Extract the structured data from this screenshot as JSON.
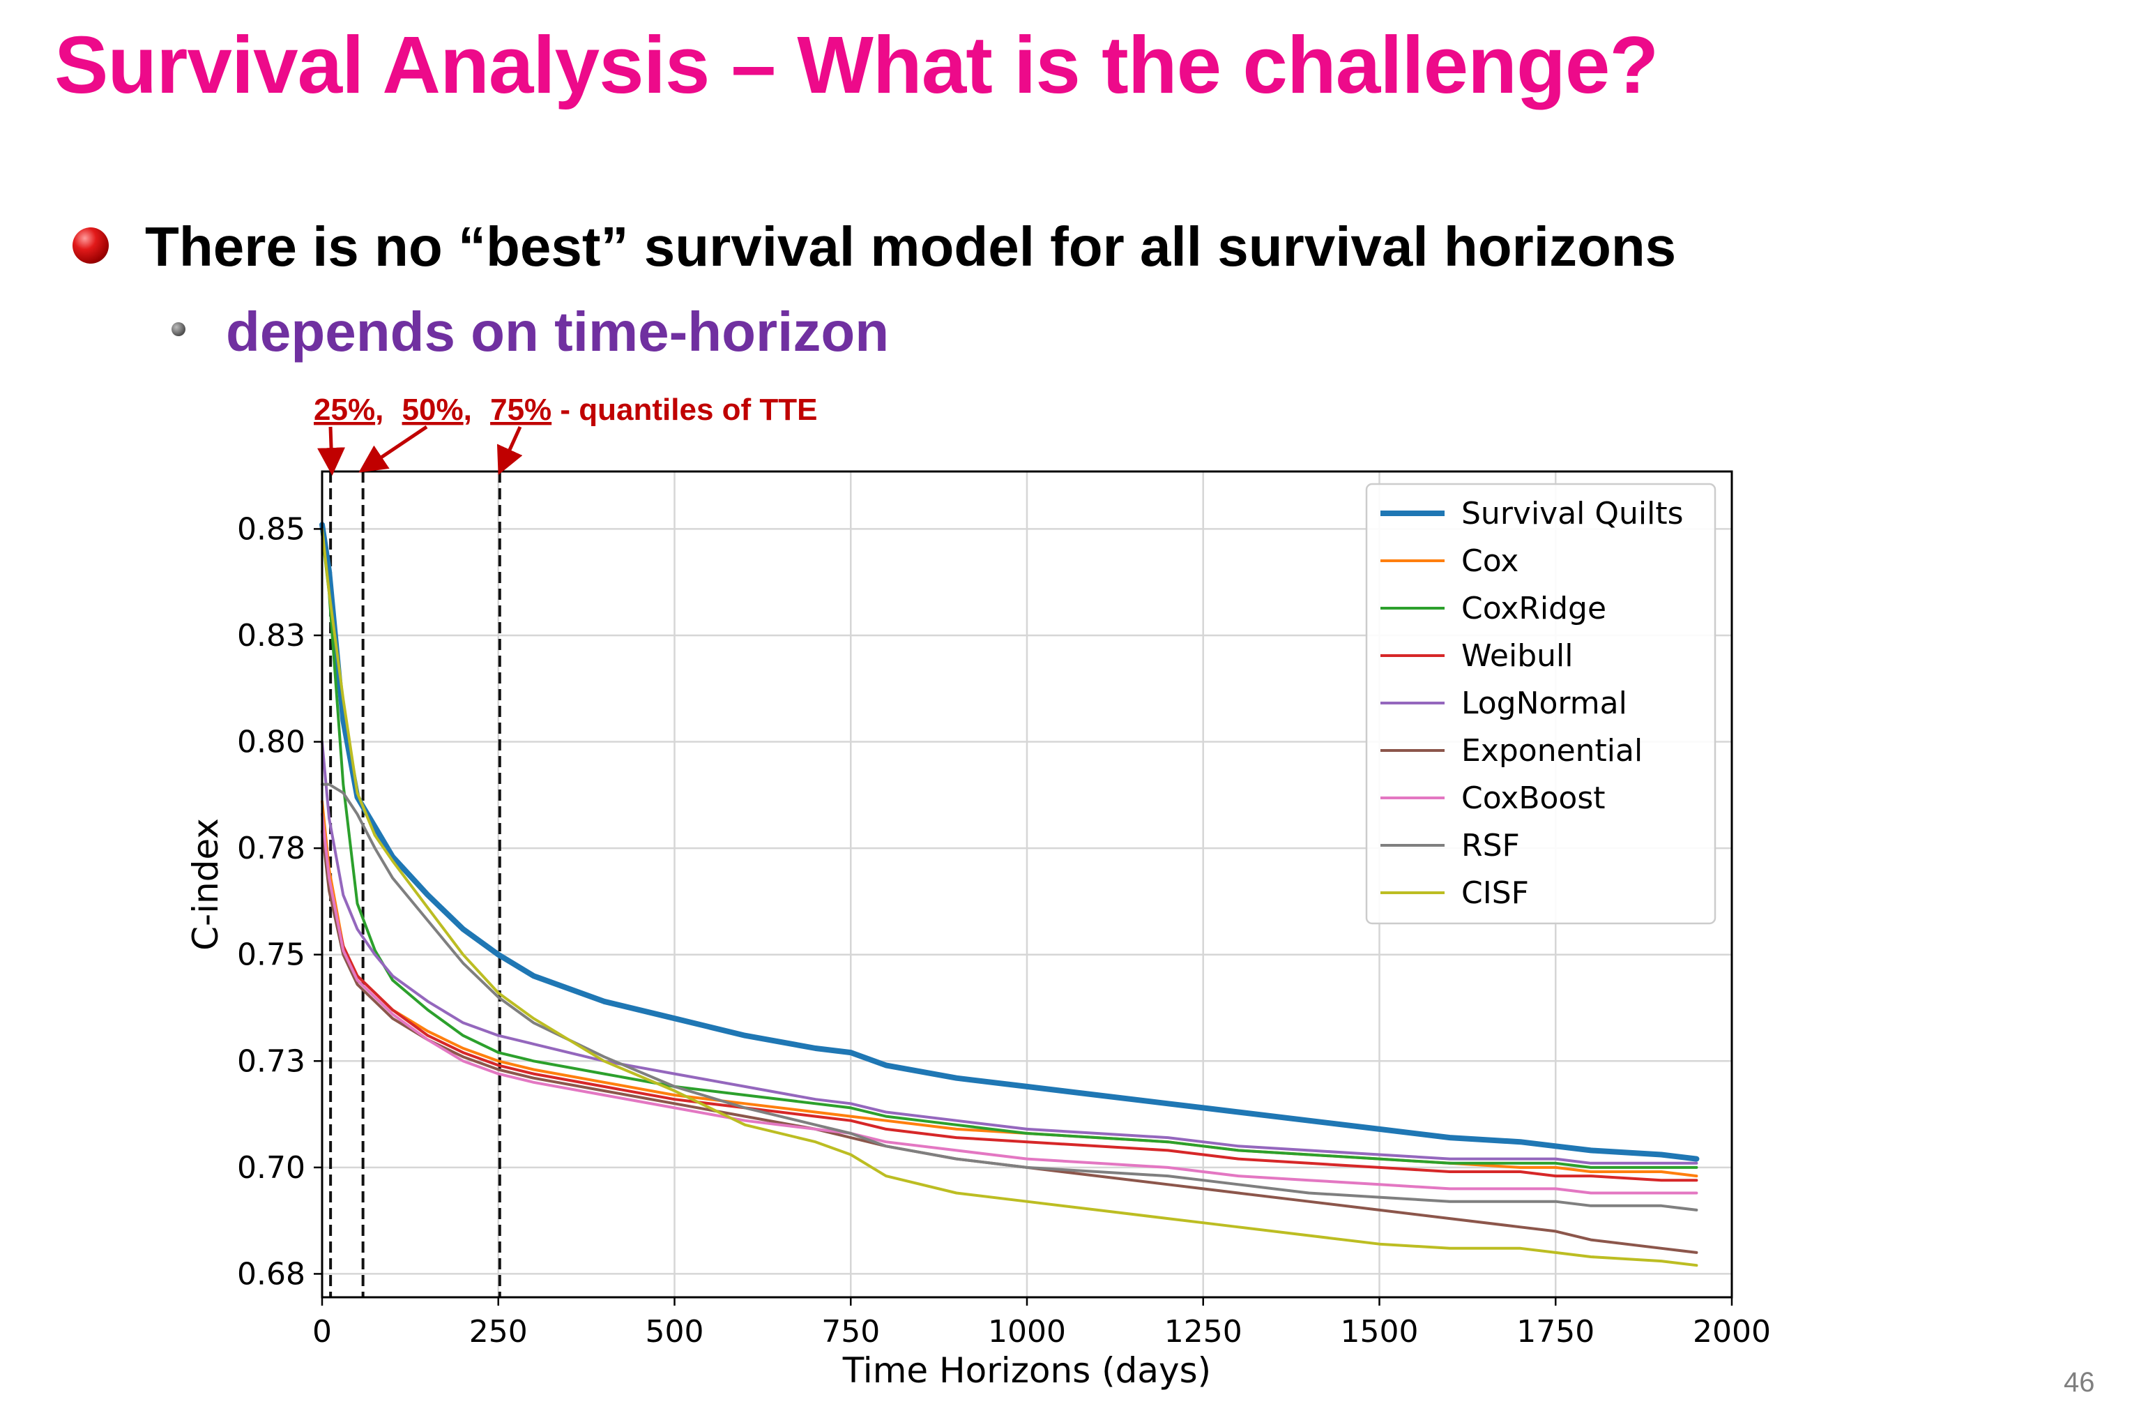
{
  "slide": {
    "title": "Survival Analysis – What is the challenge?",
    "bullets": [
      "There is no “best” survival model for all survival horizons",
      "depends on time-horizon"
    ],
    "page_number": "46",
    "annotation": {
      "labels": [
        "25%",
        "50%",
        "75%"
      ],
      "separators": [
        ",",
        ","
      ],
      "suffix": " - quantiles of TTE",
      "quantile_days": [
        12,
        58,
        252
      ],
      "color": "#c00000"
    }
  },
  "chart_data": {
    "type": "line",
    "title": "",
    "xlabel": "Time Horizons (days)",
    "ylabel": "C-index",
    "xlim": [
      0,
      2000
    ],
    "ylim": [
      0.6695,
      0.8635
    ],
    "xticks": [
      0,
      250,
      500,
      750,
      1000,
      1250,
      1500,
      1750,
      2000
    ],
    "xtick_labels": [
      "0",
      "250",
      "500",
      "750",
      "1000",
      "1250",
      "1500",
      "1750",
      "2000"
    ],
    "yticks": [
      0.675,
      0.7,
      0.725,
      0.75,
      0.775,
      0.8,
      0.825,
      0.85
    ],
    "ytick_labels": [
      "0.68",
      "0.70",
      "0.73",
      "0.75",
      "0.78",
      "0.80",
      "0.83",
      "0.85"
    ],
    "grid": true,
    "legend_position": "top-right",
    "vlines": [
      12,
      58,
      252
    ],
    "series": [
      {
        "name": "Survival Quilts",
        "color": "#1f77b4",
        "width": 8,
        "x": [
          0,
          10,
          30,
          50,
          75,
          100,
          150,
          200,
          250,
          300,
          400,
          500,
          600,
          700,
          750,
          800,
          900,
          1000,
          1100,
          1200,
          1250,
          1300,
          1400,
          1500,
          1600,
          1700,
          1750,
          1800,
          1900,
          1950
        ],
        "y": [
          0.851,
          0.84,
          0.805,
          0.787,
          0.78,
          0.773,
          0.764,
          0.756,
          0.75,
          0.745,
          0.739,
          0.735,
          0.731,
          0.728,
          0.727,
          0.724,
          0.721,
          0.719,
          0.717,
          0.715,
          0.714,
          0.713,
          0.711,
          0.709,
          0.707,
          0.706,
          0.705,
          0.704,
          0.703,
          0.702
        ]
      },
      {
        "name": "Cox",
        "color": "#ff7f0e",
        "width": 4,
        "x": [
          0,
          10,
          30,
          50,
          75,
          100,
          150,
          200,
          250,
          300,
          400,
          500,
          600,
          700,
          750,
          800,
          900,
          1000,
          1100,
          1200,
          1250,
          1300,
          1400,
          1500,
          1600,
          1700,
          1750,
          1800,
          1900,
          1950
        ],
        "y": [
          0.786,
          0.77,
          0.752,
          0.745,
          0.741,
          0.737,
          0.732,
          0.728,
          0.725,
          0.723,
          0.72,
          0.717,
          0.715,
          0.713,
          0.712,
          0.711,
          0.709,
          0.708,
          0.707,
          0.706,
          0.705,
          0.704,
          0.703,
          0.702,
          0.701,
          0.7,
          0.7,
          0.699,
          0.699,
          0.698
        ]
      },
      {
        "name": "CoxRidge",
        "color": "#2ca02c",
        "width": 4,
        "x": [
          0,
          10,
          30,
          50,
          75,
          100,
          150,
          200,
          250,
          300,
          400,
          500,
          600,
          700,
          750,
          800,
          900,
          1000,
          1100,
          1200,
          1250,
          1300,
          1400,
          1500,
          1600,
          1700,
          1750,
          1800,
          1900,
          1950
        ],
        "y": [
          0.849,
          0.835,
          0.79,
          0.762,
          0.751,
          0.744,
          0.737,
          0.731,
          0.727,
          0.725,
          0.722,
          0.719,
          0.717,
          0.715,
          0.714,
          0.712,
          0.71,
          0.708,
          0.707,
          0.706,
          0.705,
          0.704,
          0.703,
          0.702,
          0.701,
          0.701,
          0.701,
          0.7,
          0.7,
          0.7
        ]
      },
      {
        "name": "Weibull",
        "color": "#d62728",
        "width": 4,
        "x": [
          0,
          10,
          30,
          50,
          75,
          100,
          150,
          200,
          250,
          300,
          400,
          500,
          600,
          700,
          750,
          800,
          900,
          1000,
          1100,
          1200,
          1250,
          1300,
          1400,
          1500,
          1600,
          1700,
          1750,
          1800,
          1900,
          1950
        ],
        "y": [
          0.779,
          0.766,
          0.752,
          0.745,
          0.741,
          0.737,
          0.731,
          0.727,
          0.724,
          0.722,
          0.719,
          0.716,
          0.714,
          0.712,
          0.711,
          0.709,
          0.707,
          0.706,
          0.705,
          0.704,
          0.703,
          0.702,
          0.701,
          0.7,
          0.699,
          0.699,
          0.698,
          0.698,
          0.697,
          0.697
        ]
      },
      {
        "name": "LogNormal",
        "color": "#9467bd",
        "width": 4,
        "x": [
          0,
          10,
          30,
          50,
          75,
          100,
          150,
          200,
          250,
          300,
          400,
          500,
          600,
          700,
          750,
          800,
          900,
          1000,
          1100,
          1200,
          1250,
          1300,
          1400,
          1500,
          1600,
          1700,
          1750,
          1800,
          1900,
          1950
        ],
        "y": [
          0.8,
          0.782,
          0.764,
          0.756,
          0.75,
          0.745,
          0.739,
          0.734,
          0.731,
          0.729,
          0.725,
          0.722,
          0.719,
          0.716,
          0.715,
          0.713,
          0.711,
          0.709,
          0.708,
          0.707,
          0.706,
          0.705,
          0.704,
          0.703,
          0.702,
          0.702,
          0.702,
          0.701,
          0.701,
          0.701
        ]
      },
      {
        "name": "Exponential",
        "color": "#8c564b",
        "width": 4,
        "x": [
          0,
          10,
          30,
          50,
          75,
          100,
          150,
          200,
          250,
          300,
          400,
          500,
          600,
          700,
          750,
          800,
          900,
          1000,
          1100,
          1200,
          1250,
          1300,
          1400,
          1500,
          1600,
          1700,
          1750,
          1800,
          1900,
          1950
        ],
        "y": [
          0.779,
          0.765,
          0.75,
          0.743,
          0.739,
          0.735,
          0.73,
          0.726,
          0.723,
          0.721,
          0.718,
          0.715,
          0.712,
          0.709,
          0.707,
          0.705,
          0.702,
          0.7,
          0.698,
          0.696,
          0.695,
          0.694,
          0.692,
          0.69,
          0.688,
          0.686,
          0.685,
          0.683,
          0.681,
          0.68
        ]
      },
      {
        "name": "CoxBoost",
        "color": "#e377c2",
        "width": 4,
        "x": [
          0,
          10,
          30,
          50,
          75,
          100,
          150,
          200,
          250,
          300,
          400,
          500,
          600,
          700,
          750,
          800,
          900,
          1000,
          1100,
          1200,
          1250,
          1300,
          1400,
          1500,
          1600,
          1700,
          1750,
          1800,
          1900,
          1950
        ],
        "y": [
          0.783,
          0.768,
          0.751,
          0.744,
          0.74,
          0.736,
          0.73,
          0.725,
          0.722,
          0.72,
          0.717,
          0.714,
          0.711,
          0.709,
          0.708,
          0.706,
          0.704,
          0.702,
          0.701,
          0.7,
          0.699,
          0.698,
          0.697,
          0.696,
          0.695,
          0.695,
          0.695,
          0.694,
          0.694,
          0.694
        ]
      },
      {
        "name": "RSF",
        "color": "#7f7f7f",
        "width": 4,
        "x": [
          0,
          10,
          30,
          50,
          75,
          100,
          150,
          200,
          250,
          300,
          400,
          500,
          600,
          700,
          750,
          800,
          900,
          1000,
          1100,
          1200,
          1250,
          1300,
          1400,
          1500,
          1600,
          1700,
          1750,
          1800,
          1900,
          1950
        ],
        "y": [
          0.79,
          0.79,
          0.788,
          0.783,
          0.775,
          0.768,
          0.758,
          0.748,
          0.74,
          0.734,
          0.726,
          0.719,
          0.714,
          0.71,
          0.708,
          0.705,
          0.702,
          0.7,
          0.699,
          0.698,
          0.697,
          0.696,
          0.694,
          0.693,
          0.692,
          0.692,
          0.692,
          0.691,
          0.691,
          0.69
        ]
      },
      {
        "name": "CISF",
        "color": "#bcbd22",
        "width": 4,
        "x": [
          0,
          10,
          30,
          50,
          75,
          100,
          150,
          200,
          250,
          300,
          400,
          500,
          600,
          700,
          750,
          800,
          900,
          1000,
          1100,
          1200,
          1250,
          1300,
          1400,
          1500,
          1600,
          1700,
          1750,
          1800,
          1900,
          1950
        ],
        "y": [
          0.85,
          0.835,
          0.81,
          0.788,
          0.778,
          0.772,
          0.761,
          0.75,
          0.741,
          0.735,
          0.725,
          0.718,
          0.71,
          0.706,
          0.703,
          0.698,
          0.694,
          0.692,
          0.69,
          0.688,
          0.687,
          0.686,
          0.684,
          0.682,
          0.681,
          0.681,
          0.68,
          0.679,
          0.678,
          0.677
        ]
      }
    ]
  }
}
